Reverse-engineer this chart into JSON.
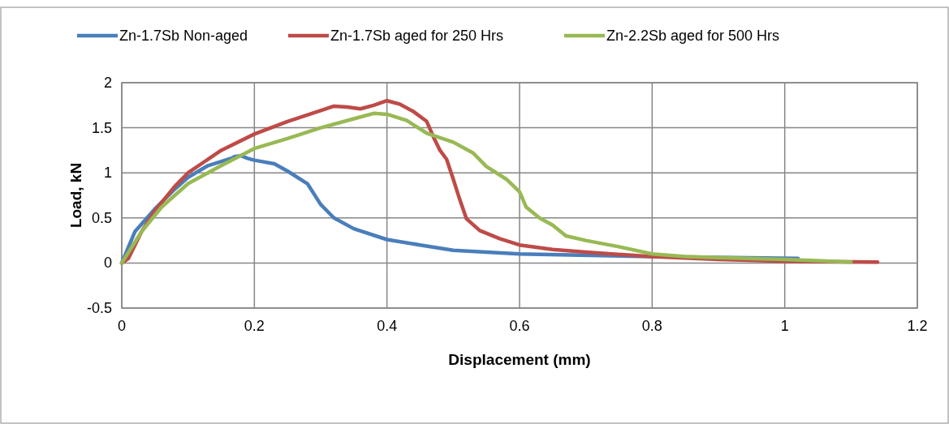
{
  "chart_data": {
    "type": "line",
    "xlabel": "Displacement (mm)",
    "ylabel": "Load, kN",
    "xlim": [
      0,
      1.2
    ],
    "xticks": [
      0,
      0.2,
      0.4,
      0.6,
      0.8,
      1,
      1.2
    ],
    "ylim": [
      -0.5,
      2
    ],
    "yticks": [
      -0.5,
      0,
      0.5,
      1,
      1.5,
      2
    ],
    "grid": true,
    "legend": "top",
    "marker": "none",
    "line_style": "solid",
    "series": [
      {
        "name": "Zn-1.7Sb Non-aged",
        "color": "#4a7ebb",
        "x": [
          0,
          0.02,
          0.05,
          0.08,
          0.1,
          0.13,
          0.16,
          0.165,
          0.17,
          0.18,
          0.19,
          0.2,
          0.23,
          0.25,
          0.28,
          0.3,
          0.32,
          0.35,
          0.4,
          0.45,
          0.5,
          0.6,
          0.8,
          1.02
        ],
        "values": [
          0,
          0.35,
          0.6,
          0.82,
          0.95,
          1.08,
          1.15,
          1.16,
          1.18,
          1.19,
          1.16,
          1.14,
          1.1,
          1.02,
          0.88,
          0.65,
          0.5,
          0.38,
          0.26,
          0.2,
          0.14,
          0.1,
          0.07,
          0.05
        ]
      },
      {
        "name": "Zn-1.7Sb aged for 250 Hrs",
        "color": "#be4b48",
        "x": [
          0,
          0.01,
          0.03,
          0.05,
          0.08,
          0.1,
          0.15,
          0.2,
          0.25,
          0.3,
          0.32,
          0.34,
          0.36,
          0.38,
          0.4,
          0.42,
          0.44,
          0.46,
          0.47,
          0.48,
          0.49,
          0.5,
          0.51,
          0.52,
          0.54,
          0.57,
          0.6,
          0.65,
          0.7,
          0.8,
          0.9,
          1.0,
          1.14
        ],
        "values": [
          0,
          0.05,
          0.35,
          0.58,
          0.85,
          1.0,
          1.25,
          1.43,
          1.57,
          1.69,
          1.74,
          1.73,
          1.71,
          1.75,
          1.8,
          1.76,
          1.68,
          1.57,
          1.4,
          1.25,
          1.15,
          0.93,
          0.7,
          0.49,
          0.36,
          0.27,
          0.2,
          0.15,
          0.12,
          0.07,
          0.04,
          0.02,
          0.01
        ]
      },
      {
        "name": "Zn-2.2Sb aged for 500 Hrs",
        "color": "#98b954",
        "x": [
          0,
          0.03,
          0.06,
          0.1,
          0.15,
          0.2,
          0.25,
          0.3,
          0.35,
          0.38,
          0.4,
          0.43,
          0.46,
          0.5,
          0.53,
          0.55,
          0.58,
          0.6,
          0.61,
          0.63,
          0.65,
          0.67,
          0.7,
          0.75,
          0.8,
          0.85,
          0.9,
          1.0,
          1.1
        ],
        "values": [
          0,
          0.35,
          0.62,
          0.88,
          1.08,
          1.27,
          1.38,
          1.5,
          1.6,
          1.66,
          1.65,
          1.58,
          1.44,
          1.34,
          1.22,
          1.07,
          0.93,
          0.79,
          0.62,
          0.5,
          0.42,
          0.3,
          0.25,
          0.18,
          0.1,
          0.07,
          0.06,
          0.04,
          0.01
        ]
      }
    ]
  }
}
